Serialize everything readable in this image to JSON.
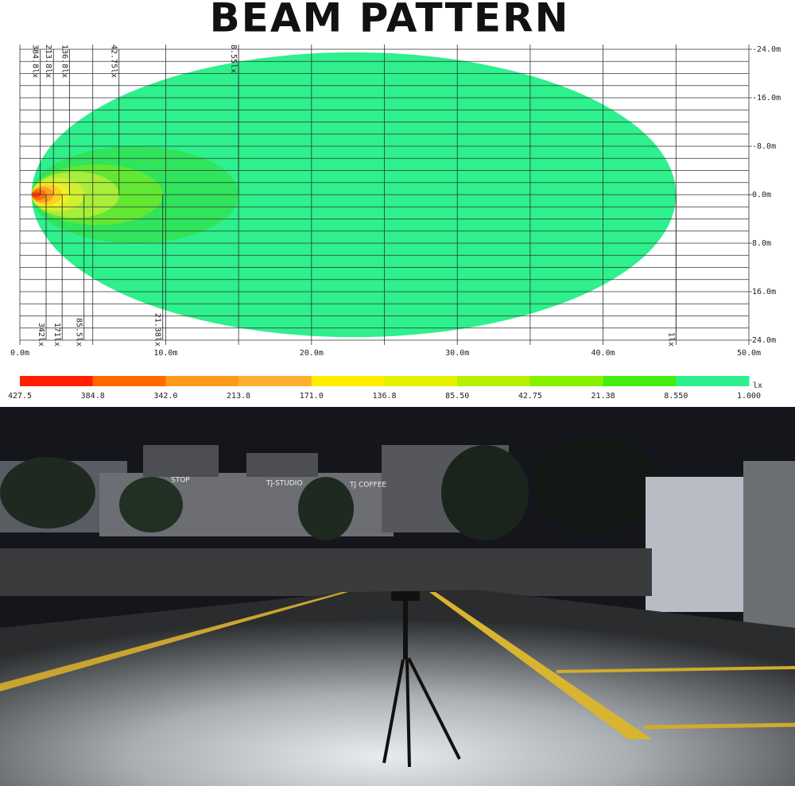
{
  "chart_data": {
    "type": "beam",
    "title": "BEAM PATTERN",
    "xlim": [
      0,
      50
    ],
    "ylim": [
      -24,
      24
    ],
    "xticks": [
      {
        "value": 0,
        "label": "0.0m"
      },
      {
        "value": 10,
        "label": "10.0m"
      },
      {
        "value": 20,
        "label": "20.0m"
      },
      {
        "value": 30,
        "label": "30.0m"
      },
      {
        "value": 40,
        "label": "40.0m"
      },
      {
        "value": 50,
        "label": "50.0m"
      }
    ],
    "yticks": [
      {
        "value": -24,
        "label": "-24.0m"
      },
      {
        "value": -16,
        "label": "-16.0m"
      },
      {
        "value": -8,
        "label": "-8.0m"
      },
      {
        "value": 0,
        "label": "0.0m"
      },
      {
        "value": 8,
        "label": "8.0m"
      },
      {
        "value": 16,
        "label": "16.0m"
      },
      {
        "value": 24,
        "label": "24.0m"
      }
    ],
    "grid": true,
    "contours": [
      {
        "label": "1lx",
        "color": "#2ef08c",
        "reach": 45,
        "halfwidth": 23.5
      },
      {
        "label": "8.55lx",
        "color": "#30e45c",
        "reach": 15,
        "halfwidth": 8
      },
      {
        "label": "21.38lx",
        "color": "#62e832",
        "reach": 9.8,
        "halfwidth": 5
      },
      {
        "label": "42.75lx",
        "color": "#a8ee3a",
        "reach": 6.8,
        "halfwidth": 3.8
      },
      {
        "label": "85.5lx",
        "color": "#d2f030",
        "reach": 4.4,
        "halfwidth": 2.8
      },
      {
        "label": "136.8lx",
        "color": "#f2f024",
        "reach": 3.4,
        "halfwidth": 2.1
      },
      {
        "label": "171lx",
        "color": "#ffd020",
        "reach": 2.9,
        "halfwidth": 1.7
      },
      {
        "label": "213.8lx",
        "color": "#ffa020",
        "reach": 2.3,
        "halfwidth": 1.3
      },
      {
        "label": "342lx",
        "color": "#ff7010",
        "reach": 1.8,
        "halfwidth": 0.9
      },
      {
        "label": "384.8lx",
        "color": "#ff4010",
        "reach": 1.4,
        "halfwidth": 0.5
      }
    ],
    "colorbar": {
      "unit": "lx",
      "colors": [
        "#ff2000",
        "#ff6a00",
        "#ff9a1a",
        "#ffb030",
        "#ffee00",
        "#e4f200",
        "#b6f000",
        "#86f000",
        "#44ee10",
        "#2ef08c"
      ],
      "ticks": [
        {
          "value": 427.5,
          "label": "427.5"
        },
        {
          "value": 384.8,
          "label": "384.8"
        },
        {
          "value": 342,
          "label": "342.0"
        },
        {
          "value": 213.8,
          "label": "213.8"
        },
        {
          "value": 171,
          "label": "171.0"
        },
        {
          "value": 136.8,
          "label": "136.8"
        },
        {
          "value": 85.5,
          "label": "85.50"
        },
        {
          "value": 42.75,
          "label": "42.75"
        },
        {
          "value": 21.38,
          "label": "21.38"
        },
        {
          "value": 8.55,
          "label": "8.550"
        },
        {
          "value": 1,
          "label": "1.000"
        }
      ]
    }
  },
  "photo": {
    "signs": [
      "STOP",
      "TJ-STUDIO",
      "TJ COFFEE"
    ]
  }
}
